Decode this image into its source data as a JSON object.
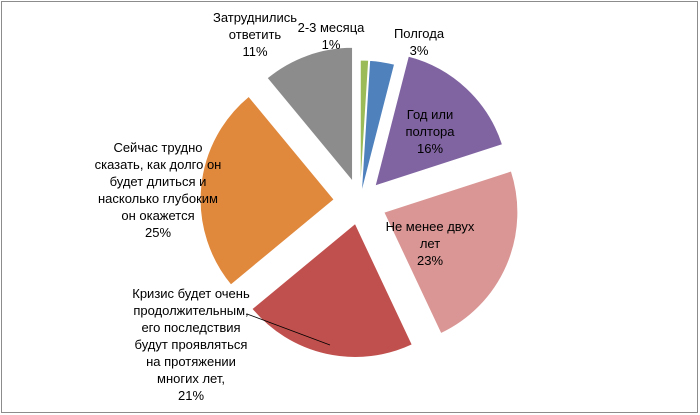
{
  "chart_data": {
    "type": "pie",
    "title": "",
    "slices": [
      {
        "label_lines": [
          "2-3 месяца",
          "1%"
        ],
        "value": 1,
        "color": "#9bbb59"
      },
      {
        "label_lines": [
          "Полгода",
          "3%"
        ],
        "value": 3,
        "color": "#4f81bd"
      },
      {
        "label_lines": [
          "Год или",
          "полтора",
          "16%"
        ],
        "value": 16,
        "color": "#8064a2"
      },
      {
        "label_lines": [
          "Не менее двух",
          "лет",
          "23%"
        ],
        "value": 23,
        "color": "#d99694"
      },
      {
        "label_lines": [
          "Кризис будет очень",
          "продолжительным,",
          "его последствия",
          "будут проявляться",
          "на протяжении",
          "многих лет,",
          "21%"
        ],
        "value": 21,
        "color": "#c0504d"
      },
      {
        "label_lines": [
          "Сейчас трудно",
          "сказать, как долго он",
          "будет длиться и",
          "насколько глубоким",
          "он окажется",
          "25%"
        ],
        "value": 25,
        "color": "#e0883c"
      },
      {
        "label_lines": [
          "Затруднились",
          "ответить",
          "11%"
        ],
        "value": 11,
        "color": "#8c8c8c"
      }
    ],
    "legend": "none"
  }
}
